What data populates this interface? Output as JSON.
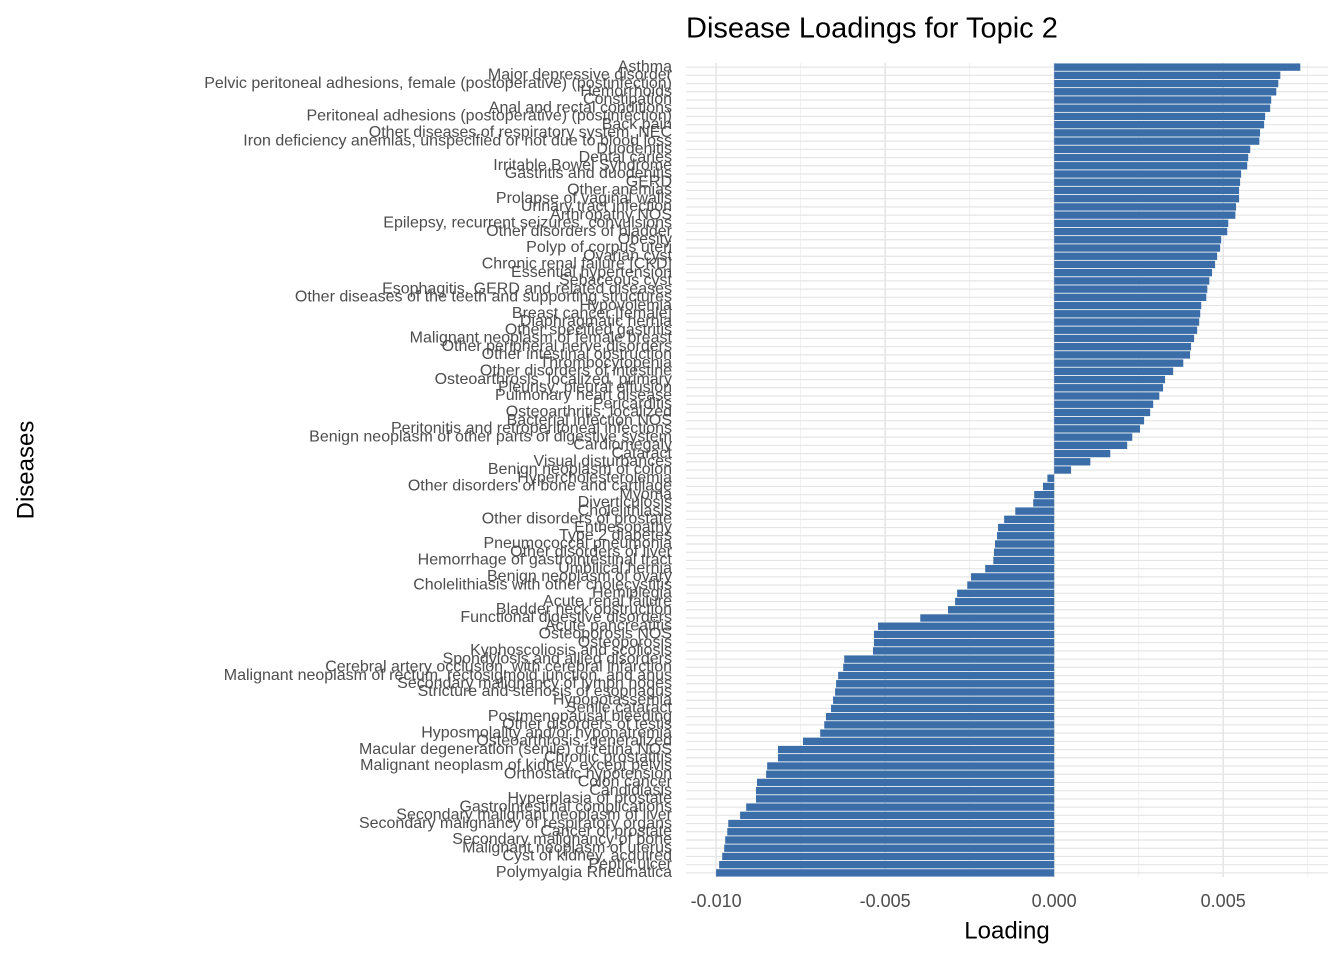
{
  "chart_data": {
    "type": "barh",
    "title": "Disease Loadings for Topic 2",
    "x_label": "Loading",
    "y_label": "Diseases",
    "color": "#3b6ea8",
    "grid": true,
    "xlim": [
      -0.01089,
      0.0081
    ],
    "xticks": [
      {
        "value": -0.01,
        "label": "-0.010"
      },
      {
        "value": -0.005,
        "label": "-0.005"
      },
      {
        "value": 0,
        "label": "0.000"
      },
      {
        "value": 0.005,
        "label": "0.005"
      }
    ],
    "categories": [
      "Asthma",
      "Major depressive disorder",
      "Pelvic peritoneal adhesions, female (postoperative) (postinfection)",
      "Hemorrhoids",
      "Constipation",
      "Anal and rectal conditions",
      "Peritoneal adhesions (postoperative) (postinfection)",
      "Back pain",
      "Other diseases of respiratory system, NEC",
      "Iron deficiency anemias, unspecified or not due to blood loss",
      "Duodenitis",
      "Dental caries",
      "Irritable Bowel Syndrome",
      "Gastritis and duodenitis",
      "GERD",
      "Other anemias",
      "Prolapse of vaginal walls",
      "Urinary tract infection",
      "Arthropathy NOS",
      "Epilepsy, recurrent seizures, convulsions",
      "Other disorders of bladder",
      "Obesity",
      "Polyp of corpus uteri",
      "Ovarian cyst",
      "Chronic renal failure [CKD]",
      "Essential hypertension",
      "Sebaceous cyst",
      "Esophagitis, GERD and related diseases",
      "Other diseases of the teeth and supporting structures",
      "Hypovolemia",
      "Breast cancer [female]",
      "Diaphragmatic hernia",
      "Other specified gastritis",
      "Malignant neoplasm of female breast",
      "Other peripheral nerve disorders",
      "Other intestinal obstruction",
      "Thrombocytopenia",
      "Other disorders of intestine",
      "Osteoarthrosis, localized, primary",
      "Pleurisy; pleural effusion",
      "Pulmonary heart disease",
      "Pericarditis",
      "Osteoarthritis; localized",
      "Bacterial infection NOS",
      "Peritonitis and retroperitoneal infections",
      "Benign neoplasm of other parts of digestive system",
      "Cardiomegaly",
      "Cataract",
      "Visual disturbances",
      "Benign neoplasm of colon",
      "Hypercholesterolemia",
      "Other disorders of bone and cartilage",
      "Myoma",
      "Diverticulosis",
      "Cholelithiasis",
      "Other disorders of prostate",
      "Enthesopathy",
      "Type 2 diabetes",
      "Pneumococcal pneumonia",
      "Other disorders of liver",
      "Hemorrhage of gastrointestinal tract",
      "Umbilical hernia",
      "Benign neoplasm of ovary",
      "Cholelithiasis with other cholecystitis",
      "Hemiplegia",
      "Acute renal failure",
      "Bladder neck obstruction",
      "Functional digestive disorders",
      "Acute pancreatitis",
      "Osteoporosis NOS",
      "Osteoporosis",
      "Kyphoscoliosis and scoliosis",
      "Spondylosis and allied disorders",
      "Cerebral artery occlusion, with cerebral infarction",
      "Malignant neoplasm of rectum, rectosigmoid junction, and anus",
      "Secondary malignancy of lymph nodes",
      "Stricture and stenosis of esophagus",
      "Hypopotassemia",
      "Senile cataract",
      "Postmenopausal bleeding",
      "Other disorders of testis",
      "Hyposmolality and/or hyponatremia",
      "Osteoarthrosis, generalized",
      "Macular degeneration (senile) of retina NOS",
      "Chronic prostatitis",
      "Malignant neoplasm of kidney, except pelvis",
      "Orthostatic hypotension",
      "Colon cancer",
      "Candidiasis",
      "Hyperplasia of prostate",
      "Gastrointestinal complications",
      "Secondary malignant neoplasm of liver",
      "Secondary malignancy of respiratory organs",
      "Cancer of prostate",
      "Secondary malignancy of bone",
      "Malignant neoplasm of uterus",
      "Cyst of kidney, acquired",
      "Peptic ulcer",
      "Polymyalgia Rheumatica"
    ],
    "values": [
      0.00728,
      0.00669,
      0.00663,
      0.00657,
      0.00642,
      0.00639,
      0.00624,
      0.00621,
      0.00609,
      0.00607,
      0.0058,
      0.00574,
      0.00571,
      0.00553,
      0.0055,
      0.00547,
      0.00547,
      0.00538,
      0.00536,
      0.00515,
      0.00512,
      0.00494,
      0.00491,
      0.00482,
      0.00476,
      0.00467,
      0.00459,
      0.00453,
      0.0045,
      0.00435,
      0.00432,
      0.00429,
      0.00423,
      0.00414,
      0.00405,
      0.00402,
      0.00382,
      0.00352,
      0.00328,
      0.00322,
      0.00311,
      0.00293,
      0.00284,
      0.00266,
      0.00254,
      0.00231,
      0.00216,
      0.00166,
      0.00107,
      0.0005,
      -0.0002,
      -0.00033,
      -0.00059,
      -0.00062,
      -0.00115,
      -0.00148,
      -0.00166,
      -0.00169,
      -0.00175,
      -0.00178,
      -0.0018,
      -0.00204,
      -0.00246,
      -0.00257,
      -0.00287,
      -0.00293,
      -0.00314,
      -0.00396,
      -0.00521,
      -0.00533,
      -0.00533,
      -0.00536,
      -0.00621,
      -0.00624,
      -0.00639,
      -0.00645,
      -0.00648,
      -0.00654,
      -0.0066,
      -0.00675,
      -0.0068,
      -0.00692,
      -0.00743,
      -0.00817,
      -0.00817,
      -0.00849,
      -0.00852,
      -0.00879,
      -0.00882,
      -0.00882,
      -0.00911,
      -0.00929,
      -0.00964,
      -0.00967,
      -0.00973,
      -0.00976,
      -0.00982,
      -0.00991,
      -0.01
    ]
  }
}
